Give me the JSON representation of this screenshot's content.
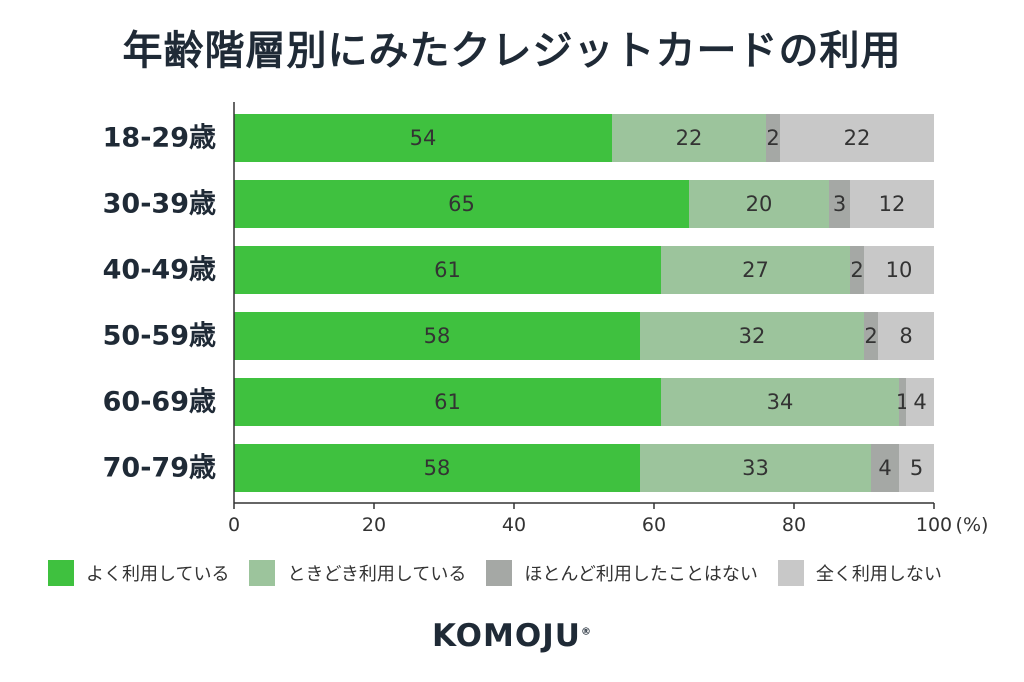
{
  "title": "年齢階層別にみたクレジットカードの利用",
  "logo": {
    "text": "KOMOJU",
    "mark": "®"
  },
  "chart_data": {
    "type": "bar",
    "orientation": "horizontal",
    "stacked": true,
    "categories": [
      "18-29歳",
      "30-39歳",
      "40-49歳",
      "50-59歳",
      "60-69歳",
      "70-79歳"
    ],
    "series": [
      {
        "name": "よく利用している",
        "color": "#3fc13f",
        "values": [
          54,
          65,
          61,
          58,
          61,
          58
        ]
      },
      {
        "name": "ときどき利用している",
        "color": "#9cc49c",
        "values": [
          22,
          20,
          27,
          32,
          34,
          33
        ]
      },
      {
        "name": "ほとんど利用したことはない",
        "color": "#a5a8a5",
        "values": [
          2,
          3,
          2,
          2,
          1,
          4
        ]
      },
      {
        "name": "全く利用しない",
        "color": "#c8c8c8",
        "values": [
          22,
          12,
          10,
          8,
          4,
          5
        ]
      }
    ],
    "x_ticks": [
      "0",
      "20",
      "40",
      "60",
      "80",
      "100"
    ],
    "x_unit": "(%)",
    "xlim": [
      0,
      100
    ],
    "grid": false,
    "legend_position": "bottom"
  }
}
